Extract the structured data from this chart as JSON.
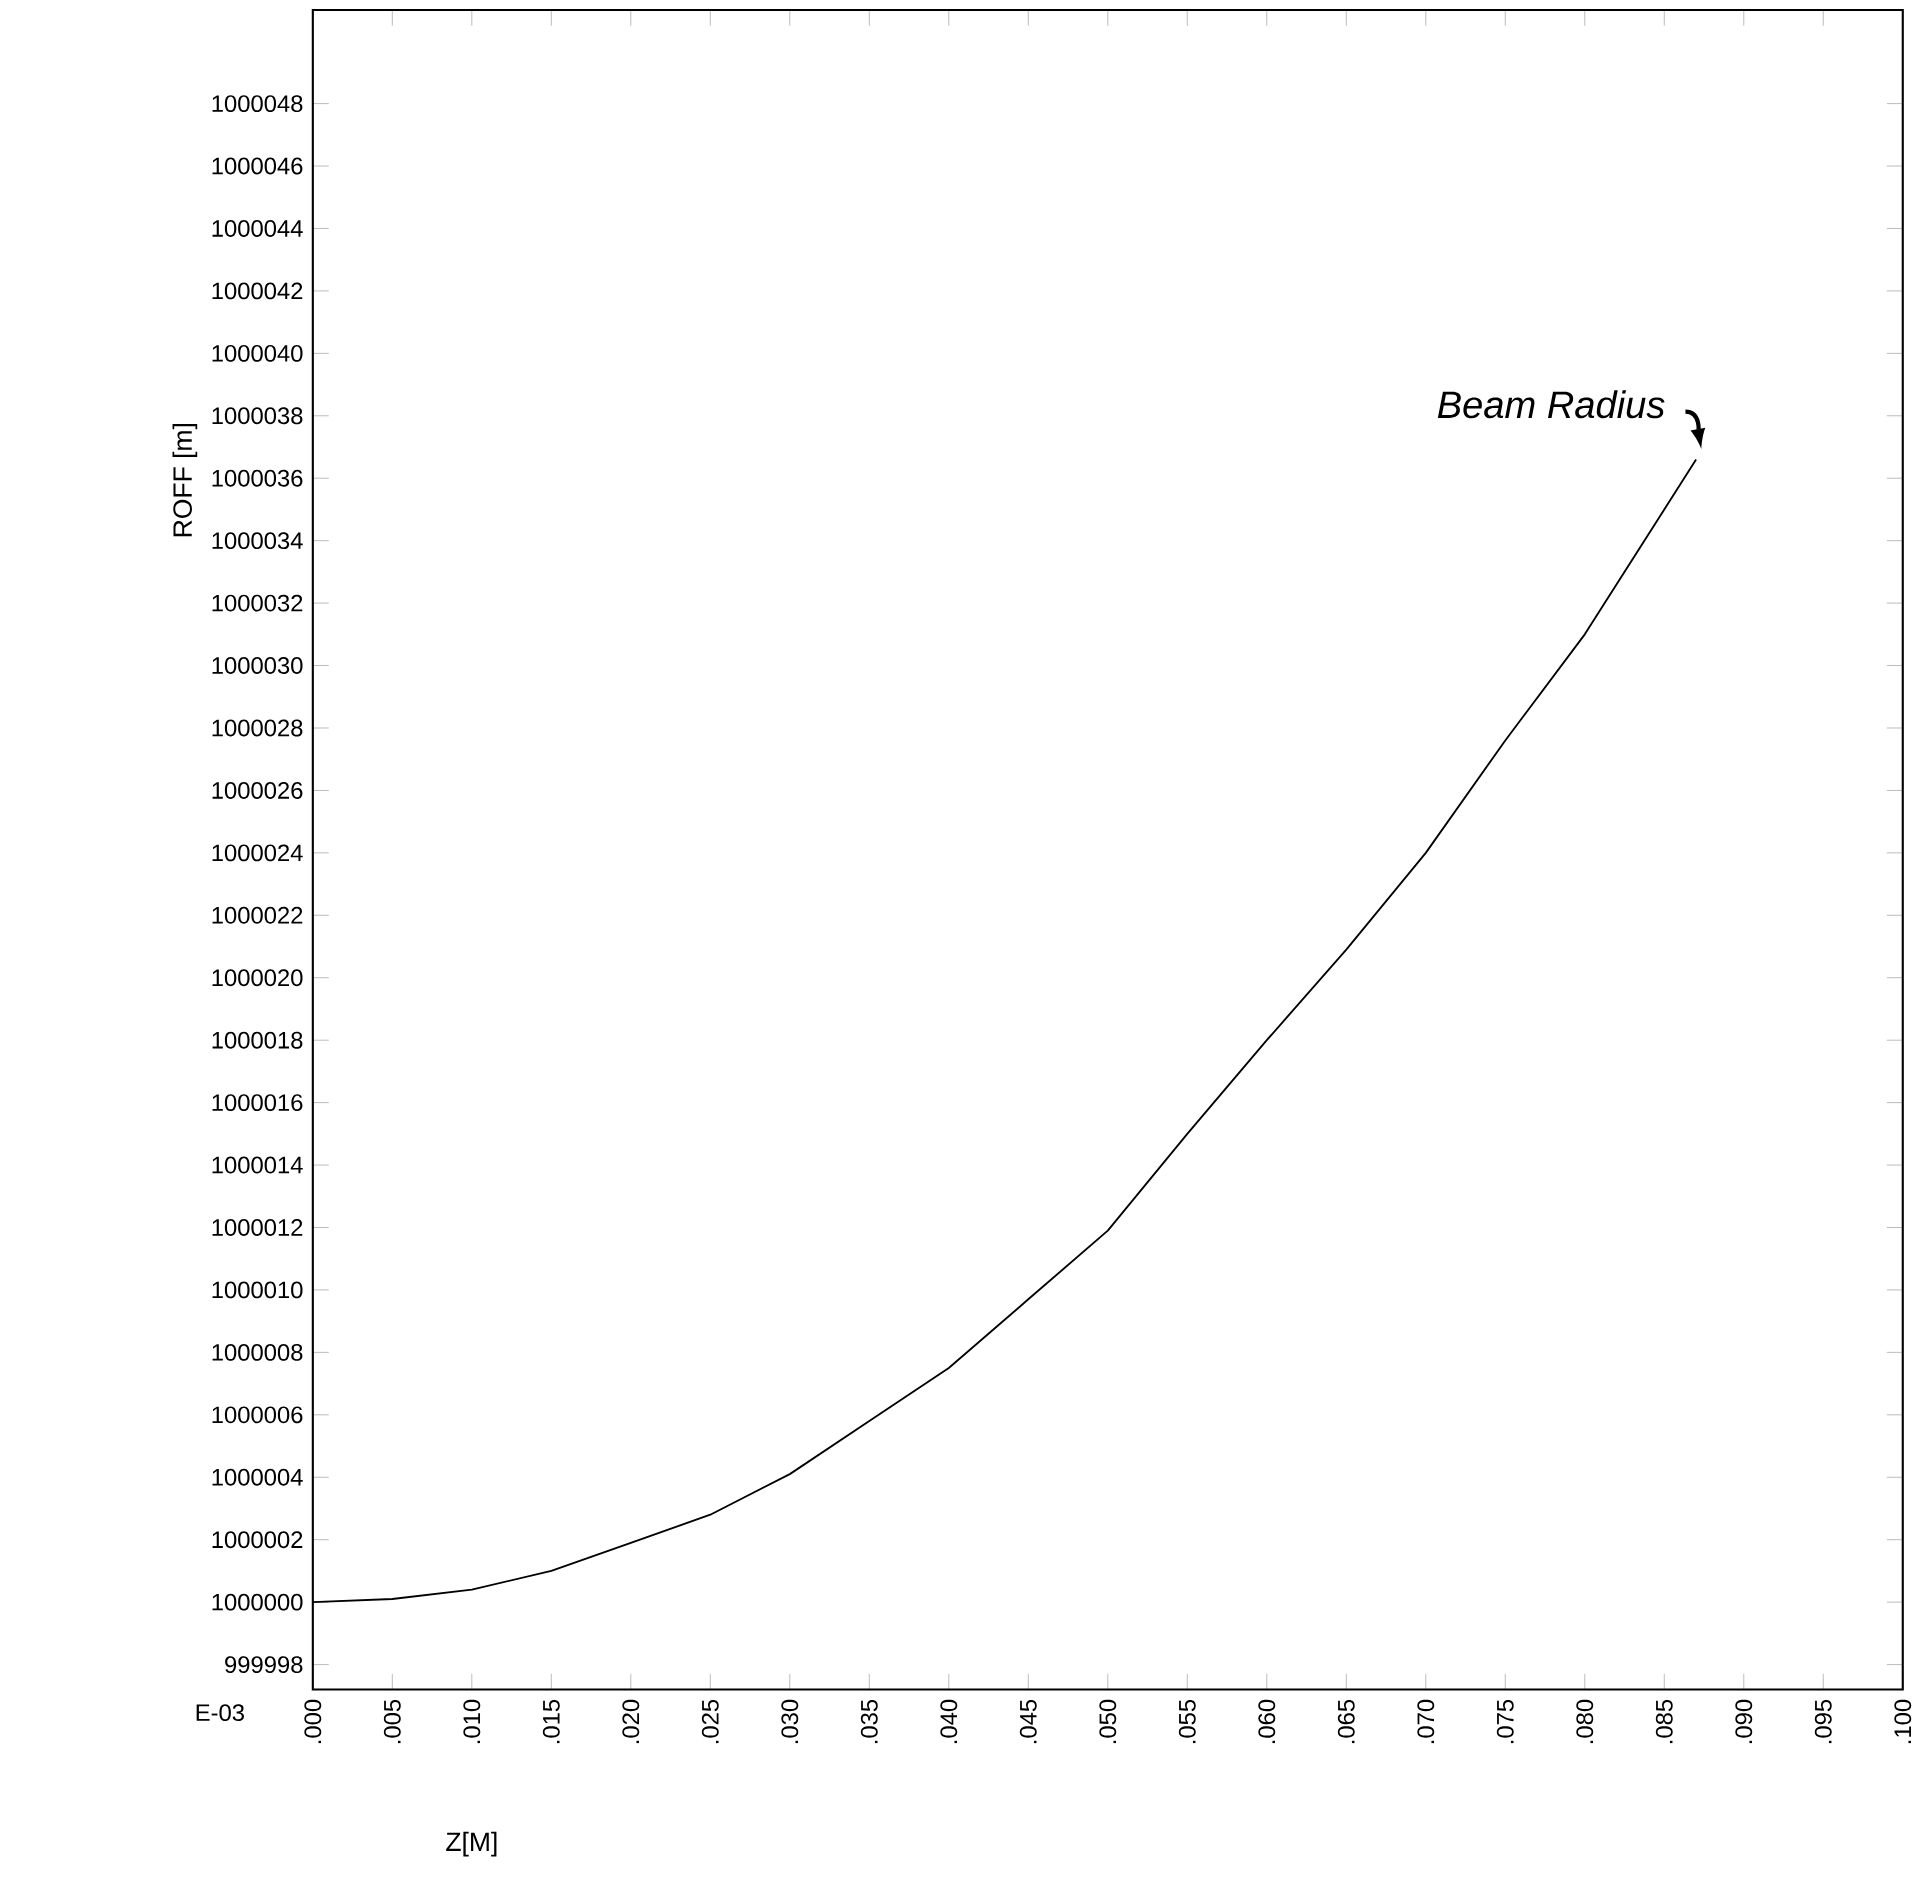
{
  "chart_data": {
    "type": "line",
    "xlabel": "Z[M]",
    "ylabel": "ROFF [m]",
    "annotations": [
      "E-03",
      {
        "text": "Beam Radius",
        "x": 0.087,
        "y": 1000036.6
      }
    ],
    "x": [
      0,
      0.005,
      0.01,
      0.015,
      0.02,
      0.025,
      0.03,
      0.035,
      0.04,
      0.045,
      0.05,
      0.055,
      0.06,
      0.065,
      0.07,
      0.075,
      0.08,
      0.085,
      0.087
    ],
    "values": [
      1000000.0,
      1000000.1,
      1000000.4,
      1000001.0,
      1000001.9,
      1000002.8,
      1000004.1,
      1000005.8,
      1000007.5,
      1000009.7,
      1000011.9,
      1000015.0,
      1000018.0,
      1000020.9,
      1000024.0,
      1000027.6,
      1000031.0,
      1000035.0,
      1000036.6
    ],
    "color": "#000000",
    "line_style": "solid",
    "marker": "none",
    "grid": false,
    "xlim": [
      0,
      0.1
    ],
    "ylim": [
      999997.2,
      1000051
    ],
    "xticks": [
      {
        "value": 0,
        "label": ".000"
      },
      {
        "value": 0.005,
        "label": ".005"
      },
      {
        "value": 0.01,
        "label": ".010"
      },
      {
        "value": 0.015,
        "label": ".015"
      },
      {
        "value": 0.02,
        "label": ".020"
      },
      {
        "value": 0.025,
        "label": ".025"
      },
      {
        "value": 0.03,
        "label": ".030"
      },
      {
        "value": 0.035,
        "label": ".035"
      },
      {
        "value": 0.04,
        "label": ".040"
      },
      {
        "value": 0.045,
        "label": ".045"
      },
      {
        "value": 0.05,
        "label": ".050"
      },
      {
        "value": 0.055,
        "label": ".055"
      },
      {
        "value": 0.06,
        "label": ".060"
      },
      {
        "value": 0.065,
        "label": ".065"
      },
      {
        "value": 0.07,
        "label": ".070"
      },
      {
        "value": 0.075,
        "label": ".075"
      },
      {
        "value": 0.08,
        "label": ".080"
      },
      {
        "value": 0.085,
        "label": ".085"
      },
      {
        "value": 0.09,
        "label": ".090"
      },
      {
        "value": 0.095,
        "label": ".095"
      },
      {
        "value": 0.1,
        "label": ".100"
      }
    ],
    "yticks": [
      999998,
      1000000,
      1000002,
      1000004,
      1000006,
      1000008,
      1000010,
      1000012,
      1000014,
      1000016,
      1000018,
      1000020,
      1000022,
      1000024,
      1000026,
      1000028,
      1000030,
      1000032,
      1000034,
      1000036,
      1000038,
      1000040,
      1000042,
      1000044,
      1000046,
      1000048
    ]
  }
}
